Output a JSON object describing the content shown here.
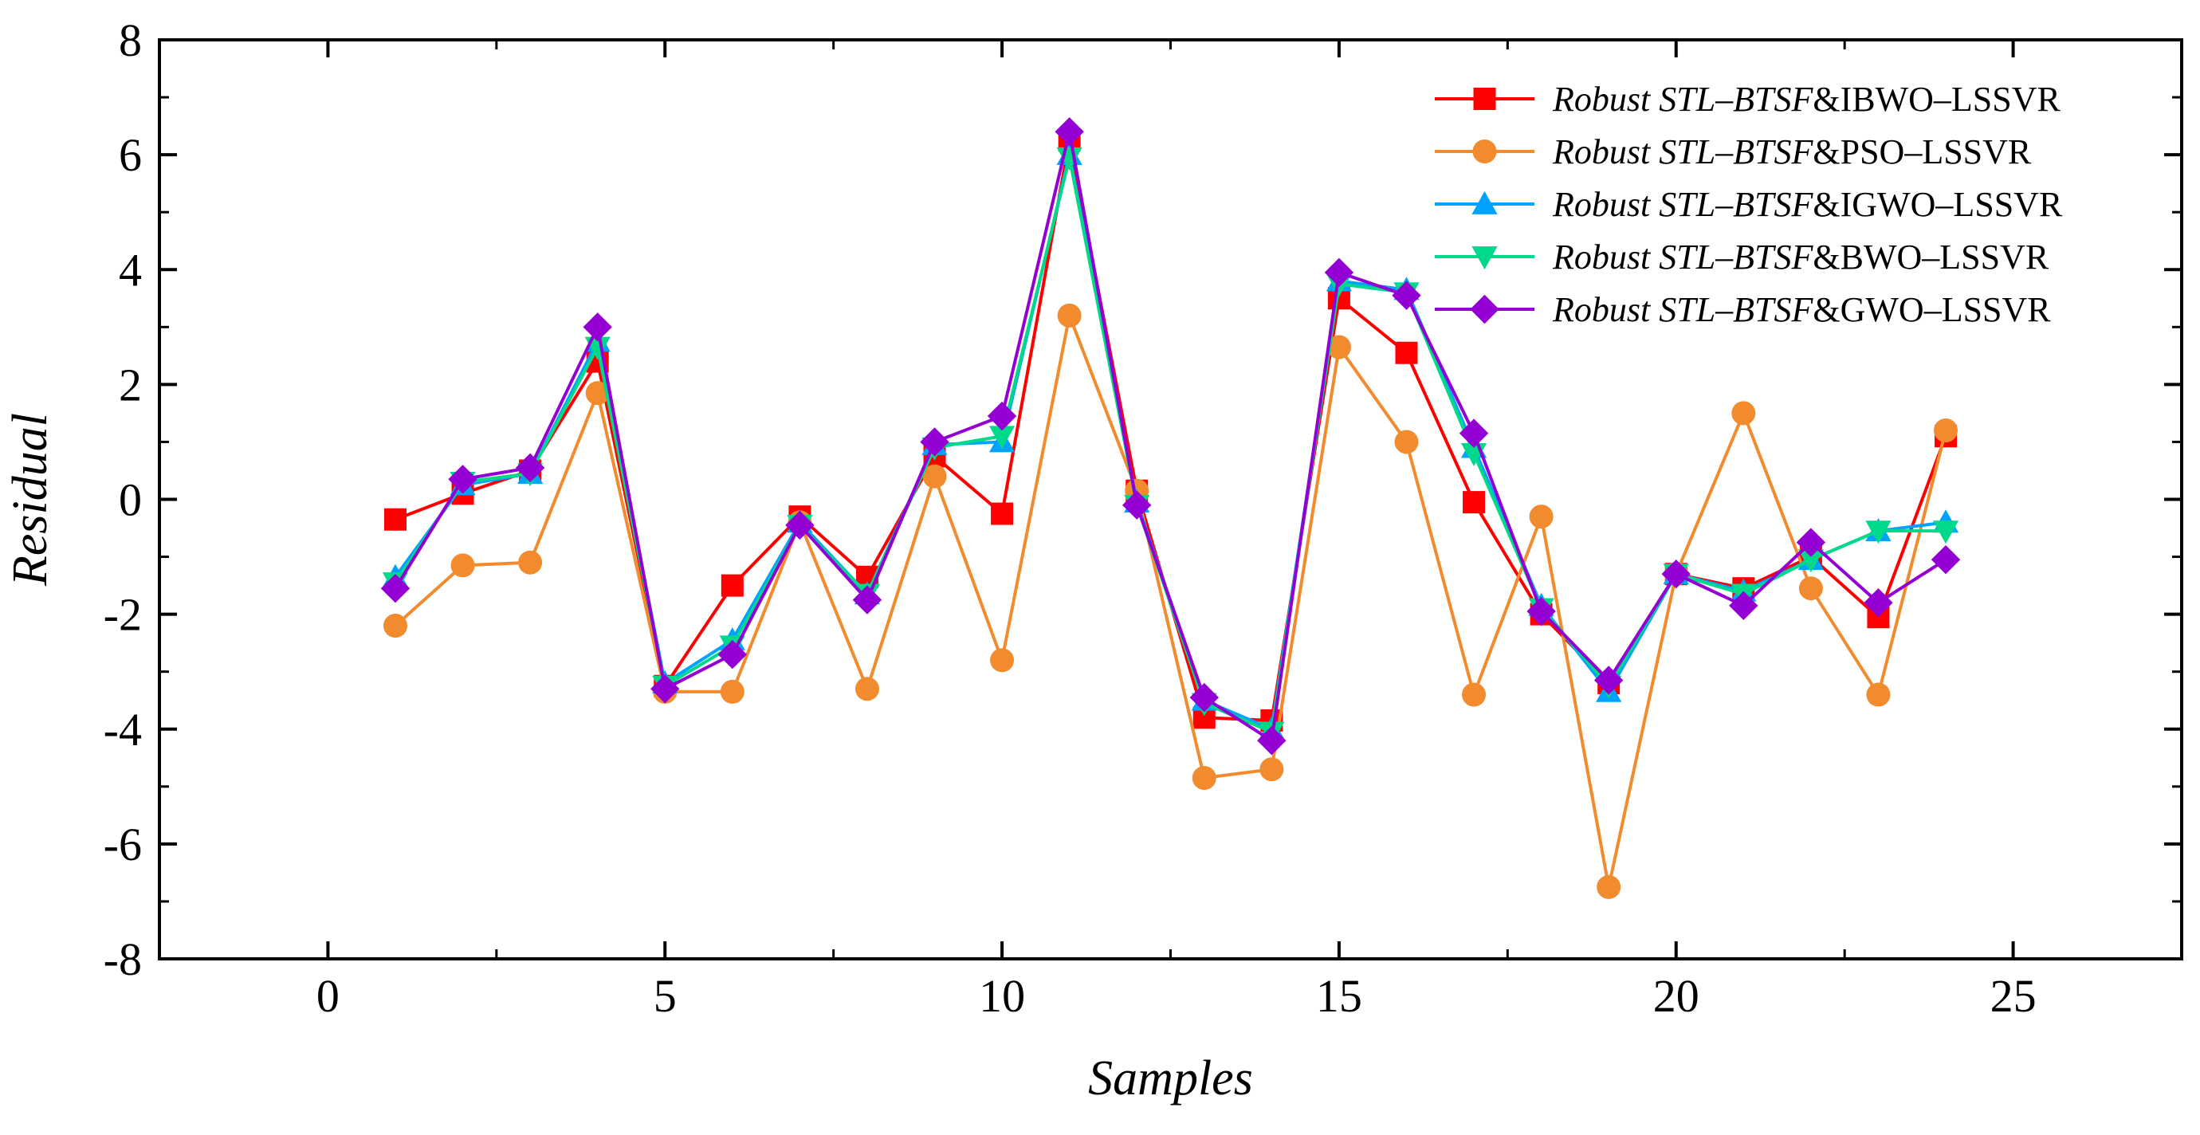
{
  "chart_data": {
    "type": "line",
    "title": "",
    "xlabel": "Samples",
    "ylabel": "Residual",
    "xlim": [
      -2.5,
      27.5
    ],
    "ylim": [
      -8,
      8
    ],
    "xticks": [
      0,
      5,
      10,
      15,
      20,
      25
    ],
    "xtick_labels": [
      "0",
      "5",
      "10",
      "15",
      "20",
      "25"
    ],
    "yticks": [
      -8,
      -6,
      -4,
      -2,
      0,
      2,
      4,
      6,
      8
    ],
    "ytick_labels": [
      "-8",
      "-6",
      "-4",
      "-2",
      "0",
      "2",
      "4",
      "6",
      "8"
    ],
    "grid": false,
    "legend_position": "top-right",
    "x": [
      1,
      2,
      3,
      4,
      5,
      6,
      7,
      8,
      9,
      10,
      11,
      12,
      13,
      14,
      15,
      16,
      17,
      18,
      19,
      20,
      21,
      22,
      23,
      24
    ],
    "series": [
      {
        "name_italic": "Robust STL–BTSF",
        "name_rest": "&IBWO–LSSVR",
        "color": "#ff0000",
        "marker": "square",
        "values": [
          -0.35,
          0.1,
          0.5,
          2.4,
          -3.25,
          -1.5,
          -0.3,
          -1.35,
          0.75,
          -0.25,
          6.25,
          0.15,
          -3.8,
          -3.85,
          3.5,
          2.55,
          -0.05,
          -2.0,
          -3.2,
          -1.3,
          -1.55,
          -1.0,
          -2.05,
          1.1
        ]
      },
      {
        "name_italic": "Robust STL–BTSF",
        "name_rest": "&PSO–LSSVR",
        "color": "#f28a2e",
        "marker": "circle",
        "values": [
          -2.2,
          -1.15,
          -1.1,
          1.85,
          -3.35,
          -3.35,
          -0.4,
          -3.3,
          0.4,
          -2.8,
          3.2,
          0.15,
          -4.85,
          -4.7,
          2.65,
          1.0,
          -3.4,
          -0.3,
          -6.75,
          -1.3,
          1.5,
          -1.55,
          -3.4,
          1.2
        ]
      },
      {
        "name_italic": "Robust STL–BTSF",
        "name_rest": "&IGWO–LSSVR",
        "color": "#00a2ff",
        "marker": "triangle-up",
        "values": [
          -1.35,
          0.25,
          0.45,
          2.75,
          -3.2,
          -2.45,
          -0.4,
          -1.65,
          0.95,
          1.0,
          6.0,
          -0.05,
          -3.5,
          -4.0,
          3.8,
          3.65,
          0.9,
          -1.85,
          -3.35,
          -1.3,
          -1.6,
          -1.05,
          -0.55,
          -0.4
        ]
      },
      {
        "name_italic": "Robust STL–BTSF",
        "name_rest": "&BWO–LSSVR",
        "color": "#00d98a",
        "marker": "triangle-down",
        "values": [
          -1.45,
          0.3,
          0.45,
          2.65,
          -3.25,
          -2.55,
          -0.45,
          -1.65,
          0.9,
          1.1,
          5.95,
          -0.1,
          -3.55,
          -4.05,
          3.75,
          3.6,
          0.8,
          -1.9,
          -3.25,
          -1.3,
          -1.65,
          -1.05,
          -0.55,
          -0.55
        ]
      },
      {
        "name_italic": "Robust STL–BTSF",
        "name_rest": "&GWO–LSSVR",
        "color": "#9400d3",
        "marker": "diamond",
        "values": [
          -1.55,
          0.35,
          0.55,
          3.0,
          -3.3,
          -2.7,
          -0.45,
          -1.75,
          1.0,
          1.45,
          6.4,
          -0.1,
          -3.45,
          -4.2,
          3.95,
          3.55,
          1.15,
          -1.95,
          -3.15,
          -1.3,
          -1.85,
          -0.75,
          -1.8,
          -1.05
        ]
      }
    ]
  }
}
